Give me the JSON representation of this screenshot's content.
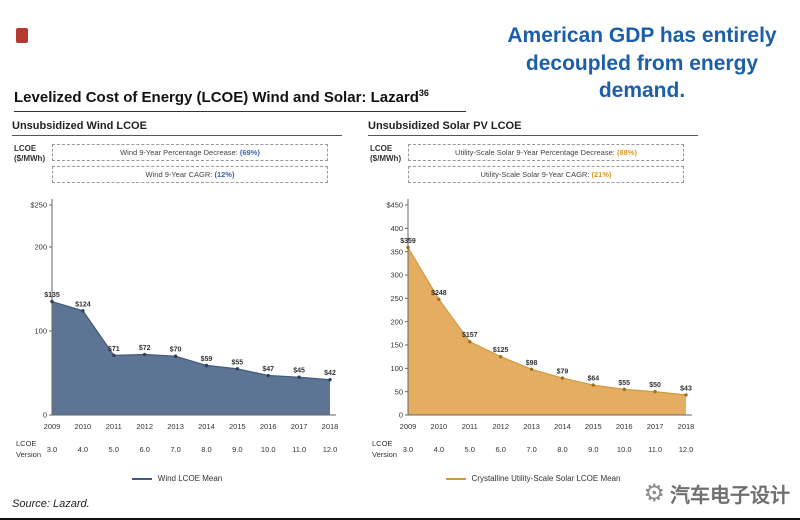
{
  "page": {
    "headline": "American GDP has entirely decoupled from energy demand.",
    "title": "Levelized Cost of Energy (LCOE) Wind and Solar: Lazard",
    "title_superscript": "36",
    "source": "Source: Lazard.",
    "watermark": "汽车电子设计",
    "colors": {
      "headline": "#1c5fa8",
      "wind_area": "#5d7494",
      "solar_area": "#e4ad61"
    }
  },
  "chart_data": [
    {
      "type": "area",
      "title": "Unsubsidized Wind LCOE",
      "ylabel": "LCOE ($/MWh)",
      "ylabel_lines": [
        "LCOE",
        "($/MWh)"
      ],
      "ylim": [
        0,
        250
      ],
      "yticks": [
        {
          "v": 250,
          "label": "$250"
        },
        {
          "v": 200,
          "label": "200"
        },
        {
          "v": 100,
          "label": "100"
        },
        {
          "v": 0,
          "label": "0"
        }
      ],
      "categories": [
        "2009",
        "2010",
        "2011",
        "2012",
        "2013",
        "2014",
        "2015",
        "2016",
        "2017",
        "2018"
      ],
      "versions": [
        "3.0",
        "4.0",
        "5.0",
        "6.0",
        "7.0",
        "8.0",
        "9.0",
        "10.0",
        "11.0",
        "12.0"
      ],
      "version_axis_label": [
        "LCOE",
        "Version"
      ],
      "values": [
        135,
        124,
        71,
        72,
        70,
        59,
        55,
        47,
        45,
        42
      ],
      "value_labels": [
        "$135",
        "$124",
        "$71",
        "$72",
        "$70",
        "$59",
        "$55",
        "$47",
        "$45",
        "$42"
      ],
      "annotations": [
        {
          "text": "Wind 9-Year Percentage Decrease: ",
          "value": "(69%)"
        },
        {
          "text": "Wind 9-Year CAGR: ",
          "value": "(12%)"
        }
      ],
      "legend": "Wind LCOE Mean",
      "grid": false,
      "legend_position": "bottom-center",
      "colors": {
        "area": "#5d7494",
        "line": "#44597c",
        "dot": "#2e4057",
        "accent": "#3a66b0"
      }
    },
    {
      "type": "area",
      "title": "Unsubsidized Solar PV LCOE",
      "ylabel": "LCOE ($/MWh)",
      "ylabel_lines": [
        "LCOE",
        "($/MWh)"
      ],
      "ylim": [
        0,
        450
      ],
      "yticks": [
        {
          "v": 450,
          "label": "$450"
        },
        {
          "v": 400,
          "label": "400"
        },
        {
          "v": 350,
          "label": "350"
        },
        {
          "v": 300,
          "label": "300"
        },
        {
          "v": 250,
          "label": "250"
        },
        {
          "v": 200,
          "label": "200"
        },
        {
          "v": 150,
          "label": "150"
        },
        {
          "v": 100,
          "label": "100"
        },
        {
          "v": 50,
          "label": "50"
        },
        {
          "v": 0,
          "label": "0"
        }
      ],
      "categories": [
        "2009",
        "2010",
        "2011",
        "2012",
        "2013",
        "2014",
        "2015",
        "2016",
        "2017",
        "2018"
      ],
      "versions": [
        "3.0",
        "4.0",
        "5.0",
        "6.0",
        "7.0",
        "8.0",
        "9.0",
        "10.0",
        "11.0",
        "12.0"
      ],
      "version_axis_label": [
        "LCOE",
        "Version"
      ],
      "values": [
        359,
        248,
        157,
        125,
        98,
        79,
        64,
        55,
        50,
        43
      ],
      "value_labels": [
        "$359",
        "$248",
        "$157",
        "$125",
        "$98",
        "$79",
        "$64",
        "$55",
        "$50",
        "$43"
      ],
      "annotations": [
        {
          "text": "Utility-Scale Solar 9-Year Percentage Decrease: ",
          "value": "(88%)"
        },
        {
          "text": "Utility-Scale Solar 9-Year CAGR: ",
          "value": "(21%)"
        }
      ],
      "legend": "Crystalline Utility-Scale Solar LCOE Mean",
      "grid": false,
      "legend_position": "bottom-center",
      "colors": {
        "area": "#e4ad61",
        "line": "#cf9a3f",
        "dot": "#9c6f1f",
        "accent": "#d79a2a"
      }
    }
  ]
}
